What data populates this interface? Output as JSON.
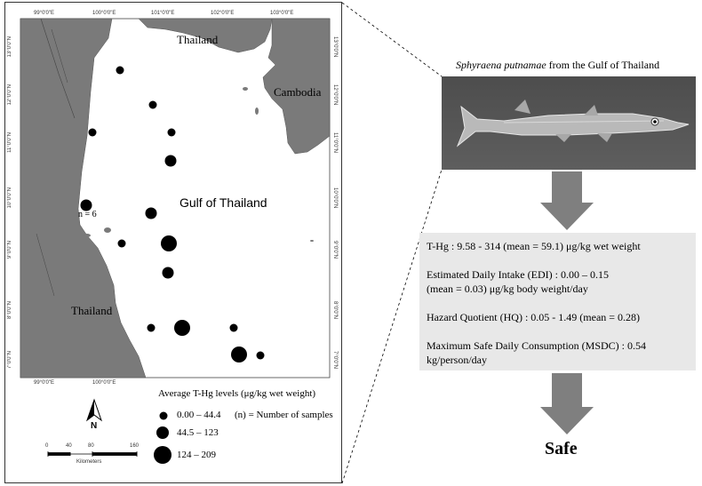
{
  "map": {
    "lon_ticks": [
      "99°0'0\"E",
      "100°0'0\"E",
      "101°0'0\"E",
      "102°0'0\"E",
      "103°0'0\"E"
    ],
    "lat_ticks": [
      "13°0'0\"N",
      "12°0'0\"N",
      "11°0'0\"N",
      "10°0'0\"N",
      "9°0'0\"N",
      "8°0'0\"N",
      "7°0'0\"N"
    ],
    "labels": {
      "thailand_north": "Thailand",
      "cambodia": "Cambodia",
      "gulf": "Gulf of Thailand",
      "thailand_south": "Thailand",
      "n_annotation": "n = 6"
    },
    "north_arrow": "N",
    "scale": {
      "ticks": [
        "0",
        "40",
        "80",
        "160"
      ],
      "unit": "Kilometers"
    }
  },
  "legend": {
    "title": "Average T-Hg levels (μg/kg wet weight)",
    "classes": [
      {
        "range": "0.00 – 44.4",
        "size": "small"
      },
      {
        "range": "44.5 – 123",
        "size": "medium"
      },
      {
        "range": "124 – 209",
        "size": "large"
      }
    ],
    "note": "(n) = Number of samples"
  },
  "fish": {
    "species": "Sphyraena putnamae",
    "caption_suffix": " from the Gulf of Thailand"
  },
  "info": {
    "thg": "T-Hg : 9.58 - 314 (mean = 59.1) μg/kg wet weight",
    "edi_line1": "Estimated Daily Intake (EDI) : 0.00 – 0.15",
    "edi_line2": "(mean = 0.03) μg/kg body weight/day",
    "hq": "Hazard Quotient (HQ) : 0.05 - 1.49 (mean = 0.28)",
    "msdc_line1": "Maximum Safe Daily Consumption (MSDC) : 0.54",
    "msdc_line2": "kg/person/day"
  },
  "verdict": "Safe",
  "colors": {
    "land": "#7a7a7a",
    "sea": "#ffffff",
    "dot": "#000000",
    "arrow": "#7f7f7f",
    "info_bg": "#e8e8e8"
  }
}
